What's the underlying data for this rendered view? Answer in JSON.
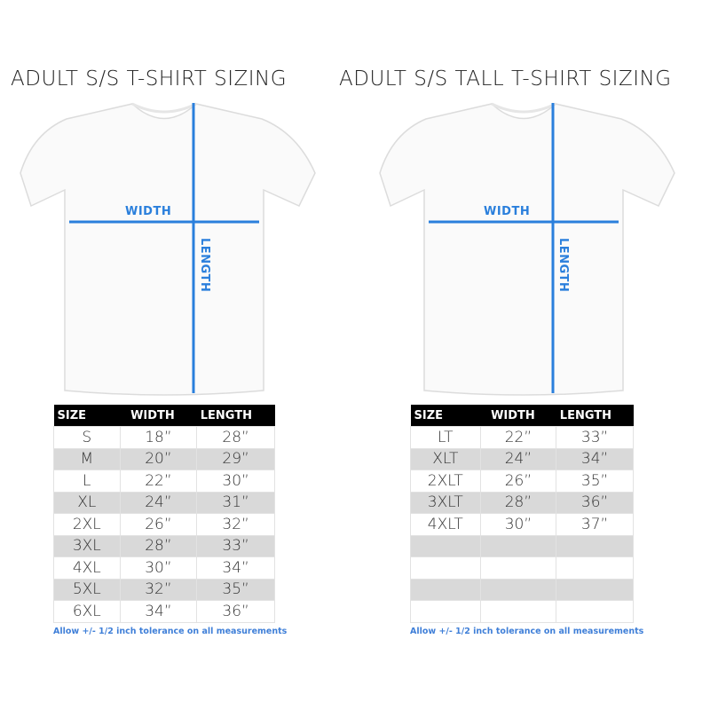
{
  "left": {
    "title": "ADULT S/S T-SHIRT SIZING",
    "width_label": "WIDTH",
    "length_label": "LENGTH",
    "headers": [
      "SIZE",
      "WIDTH",
      "LENGTH"
    ],
    "rows": [
      [
        "S",
        "18”",
        "28”"
      ],
      [
        "M",
        "20”",
        "29”"
      ],
      [
        "L",
        "22”",
        "30”"
      ],
      [
        "XL",
        "24”",
        "31”"
      ],
      [
        "2XL",
        "26”",
        "32”"
      ],
      [
        "3XL",
        "28”",
        "33”"
      ],
      [
        "4XL",
        "30”",
        "34”"
      ],
      [
        "5XL",
        "32”",
        "35”"
      ],
      [
        "6XL",
        "34”",
        "36”"
      ]
    ],
    "note": "Allow +/- 1/2 inch tolerance on all measurements"
  },
  "right": {
    "title": "ADULT S/S TALL T-SHIRT SIZING",
    "width_label": "WIDTH",
    "length_label": "LENGTH",
    "headers": [
      "SIZE",
      "WIDTH",
      "LENGTH"
    ],
    "rows": [
      [
        "LT",
        "22”",
        "33”"
      ],
      [
        "XLT",
        "24”",
        "34”"
      ],
      [
        "2XLT",
        "26”",
        "35”"
      ],
      [
        "3XLT",
        "28”",
        "36”"
      ],
      [
        "4XLT",
        "30”",
        "37”"
      ],
      [
        "",
        "",
        ""
      ],
      [
        "",
        "",
        ""
      ],
      [
        "",
        "",
        ""
      ],
      [
        "",
        "",
        ""
      ]
    ],
    "note": "Allow +/- 1/2 inch tolerance on all measurements"
  },
  "colors": {
    "measure_line": "#2a7fdc",
    "header_bg": "#000000",
    "stripe": "#d9d9d9"
  }
}
